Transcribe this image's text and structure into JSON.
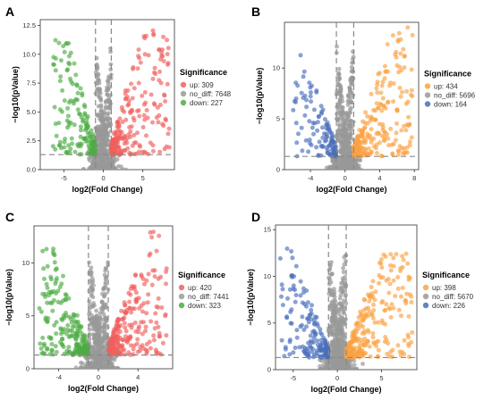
{
  "figure": {
    "panels": [
      {
        "letter": "A",
        "ylabel": "−log10(pValue)",
        "xlabel": "log2(Fold Change)",
        "legend_title": "Significance",
        "xticks": [
          -5,
          0,
          5
        ],
        "yticks": [
          "0.0",
          "2.5",
          "5.0",
          "7.5",
          "10.0",
          "12.5"
        ]
      },
      {
        "letter": "B",
        "ylabel": "−log10(pValue)",
        "xlabel": "log2(Fold Change)",
        "legend_title": "Significance",
        "xticks": [
          -4,
          0,
          4,
          8
        ],
        "yticks": [
          "0",
          "5",
          "10"
        ]
      },
      {
        "letter": "C",
        "ylabel": "−log10(pValue)",
        "xlabel": "log2(Fold Change)",
        "legend_title": "Significance",
        "xticks": [
          -4,
          0,
          4
        ],
        "yticks": [
          "0",
          "5",
          "10"
        ]
      },
      {
        "letter": "D",
        "ylabel": "−log10(pValue)",
        "xlabel": "log2(Fold Change)",
        "legend_title": "Significance",
        "xticks": [
          -5,
          0,
          5
        ],
        "yticks": [
          "0",
          "5",
          "10",
          "15"
        ]
      }
    ]
  },
  "chart_data": [
    {
      "type": "scatter",
      "xlabel": "log2(Fold Change)",
      "ylabel": "−log10(pValue)",
      "xlim": [
        -8,
        9
      ],
      "ylim": [
        0,
        13
      ],
      "fc_threshold": [
        -1,
        1
      ],
      "p_threshold": 1.3,
      "legend_title": "Significance",
      "legend_position": "right",
      "series": [
        {
          "name": "up: 309",
          "color": "#f0605d",
          "count": 309,
          "x_max": 8.5,
          "y_max": 12.2
        },
        {
          "name": "no_diff: 7648",
          "color": "#999999",
          "count": 7648,
          "x_max": 2.0,
          "y_max": 11.5
        },
        {
          "name": "down: 227",
          "color": "#4dac44",
          "count": 227,
          "x_min": -6.5,
          "y_max": 11.8
        }
      ]
    },
    {
      "type": "scatter",
      "xlabel": "log2(Fold Change)",
      "ylabel": "−log10(pValue)",
      "xlim": [
        -7,
        8.5
      ],
      "ylim": [
        0,
        14.5
      ],
      "fc_threshold": [
        -1,
        1
      ],
      "p_threshold": 1.3,
      "legend_title": "Significance",
      "legend_position": "right",
      "series": [
        {
          "name": "up: 434",
          "color": "#fba242",
          "count": 434,
          "x_max": 7.8,
          "y_max": 14.2
        },
        {
          "name": "no_diff: 5696",
          "color": "#999999",
          "count": 5696,
          "x_max": 2.0,
          "y_max": 12.5
        },
        {
          "name": "down: 164",
          "color": "#4a6ebb",
          "count": 164,
          "x_min": -6.0,
          "y_max": 12.0
        }
      ]
    },
    {
      "type": "scatter",
      "xlabel": "log2(Fold Change)",
      "ylabel": "−log10(pValue)",
      "xlim": [
        -6.5,
        7.5
      ],
      "ylim": [
        0,
        13.5
      ],
      "fc_threshold": [
        -1,
        1
      ],
      "p_threshold": 1.3,
      "legend_title": "Significance",
      "legend_position": "right",
      "series": [
        {
          "name": "up: 420",
          "color": "#f0605d",
          "count": 420,
          "x_max": 7.0,
          "y_max": 13.0
        },
        {
          "name": "no_diff: 7441",
          "color": "#999999",
          "count": 7441,
          "x_max": 2.0,
          "y_max": 11.8
        },
        {
          "name": "down: 323",
          "color": "#4dac44",
          "count": 323,
          "x_min": -6.0,
          "y_max": 11.5
        }
      ]
    },
    {
      "type": "scatter",
      "xlabel": "log2(Fold Change)",
      "ylabel": "−log10(pValue)",
      "xlim": [
        -7,
        9
      ],
      "ylim": [
        0,
        15.5
      ],
      "fc_threshold": [
        -1,
        1
      ],
      "p_threshold": 1.3,
      "legend_title": "Significance",
      "legend_position": "right",
      "series": [
        {
          "name": "up: 398",
          "color": "#fba242",
          "count": 398,
          "x_max": 8.5,
          "y_max": 12.5
        },
        {
          "name": "no_diff: 5670",
          "color": "#999999",
          "count": 5670,
          "x_max": 2.0,
          "y_max": 14.8
        },
        {
          "name": "down: 226",
          "color": "#4a6ebb",
          "count": 226,
          "x_min": -6.5,
          "y_max": 14.8
        }
      ]
    }
  ]
}
